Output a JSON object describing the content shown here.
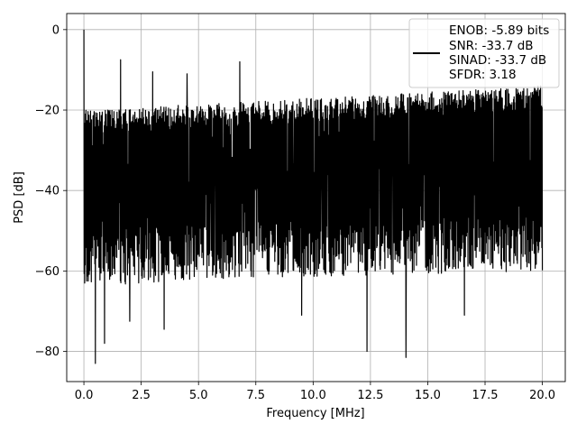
{
  "chart_data": {
    "type": "line",
    "xlabel": "Frequency [MHz]",
    "ylabel": "PSD [dB]",
    "xlim": [
      -0.75,
      21.0
    ],
    "ylim": [
      -87.5,
      4.0
    ],
    "xticks": [
      0.0,
      2.5,
      5.0,
      7.5,
      10.0,
      12.5,
      15.0,
      17.5,
      20.0
    ],
    "xtick_labels": [
      "0.0",
      "2.5",
      "5.0",
      "7.5",
      "10.0",
      "12.5",
      "15.0",
      "17.5",
      "20.0"
    ],
    "yticks": [
      0,
      -20,
      -40,
      -60,
      -80
    ],
    "ytick_labels": [
      "0",
      "−20",
      "−40",
      "−60",
      "−80"
    ],
    "grid": true,
    "legend_position": "top-right",
    "series": [
      {
        "name": "",
        "color": "#000000"
      }
    ],
    "legend": [
      "ENOB: -5.89 bits",
      "SNR: -33.7 dB",
      "SINAD: -33.7 dB",
      "SFDR: 3.18"
    ],
    "x_range": [
      0.0,
      20.0
    ],
    "noise_floor_trend": [
      [
        0.0,
        -38
      ],
      [
        5.0,
        -36
      ],
      [
        20.0,
        -34
      ]
    ],
    "upper_envelope_trend": [
      [
        0.25,
        -20
      ],
      [
        20.0,
        -14
      ]
    ],
    "peaks": [
      [
        0.0,
        0.0
      ],
      [
        1.6,
        -7.5
      ],
      [
        3.0,
        -10.5
      ],
      [
        4.5,
        -11.0
      ],
      [
        6.8,
        -8.0
      ]
    ],
    "dips": [
      [
        0.5,
        -83
      ],
      [
        0.9,
        -78
      ],
      [
        2.0,
        -72.5
      ],
      [
        3.5,
        -74.5
      ],
      [
        9.5,
        -71
      ],
      [
        12.35,
        -80
      ],
      [
        14.05,
        -81.5
      ],
      [
        16.6,
        -71
      ]
    ]
  }
}
